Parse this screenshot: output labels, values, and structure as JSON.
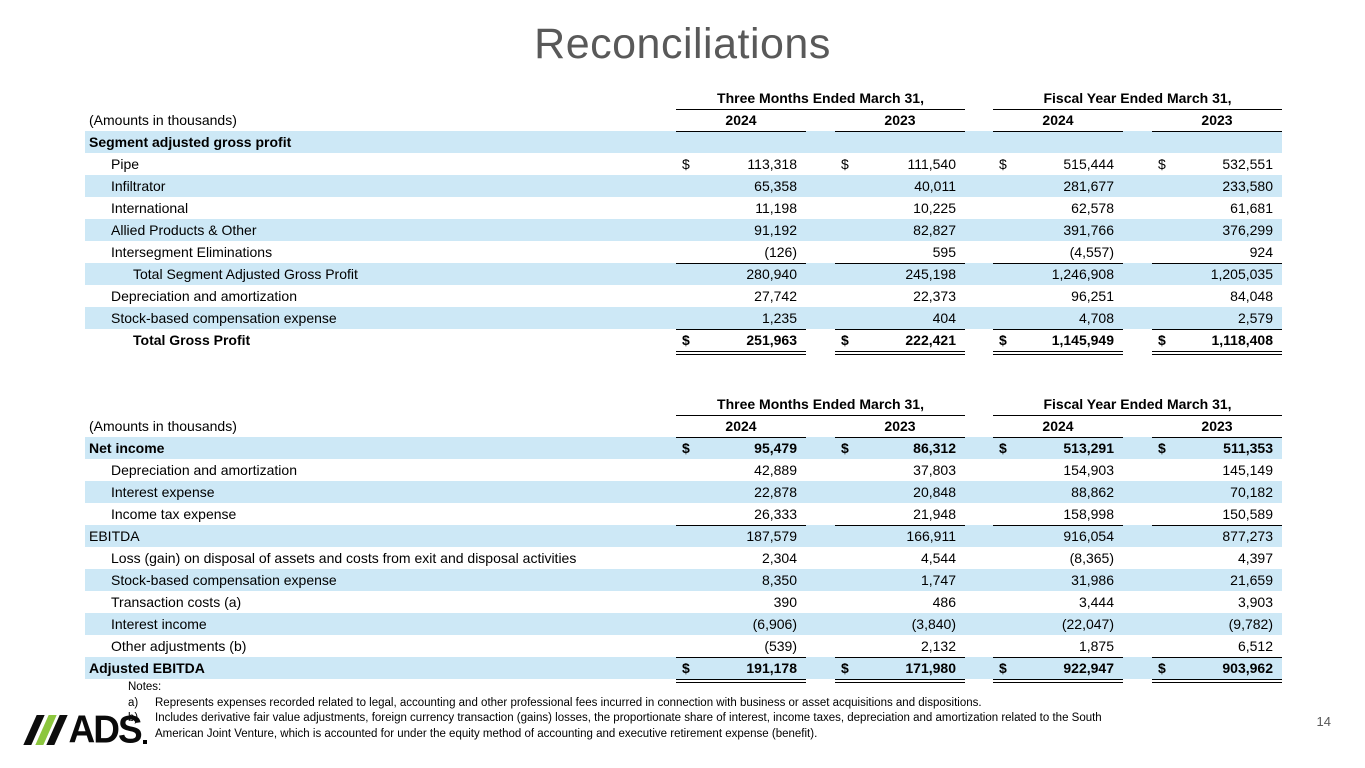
{
  "title": "Reconciliations",
  "page_number": "14",
  "logo": {
    "text": "ADS"
  },
  "colors": {
    "band": "#cde8f6",
    "logo_green": "#8cc63e",
    "title_gray": "#595959"
  },
  "tables": [
    {
      "name": "gross-profit-reconciliation",
      "group_headers": [
        "Three Months Ended March 31,",
        "Fiscal Year Ended March 31,"
      ],
      "amounts_label": "(Amounts in thousands)",
      "year_headers": [
        "2024",
        "2023",
        "2024",
        "2023"
      ],
      "rows": [
        {
          "label": "Segment adjusted gross profit",
          "indent": 0,
          "bold": true,
          "band": true,
          "dollar": false,
          "rule": "none",
          "values": [
            "",
            "",
            "",
            ""
          ]
        },
        {
          "label": "Pipe",
          "indent": 1,
          "bold": false,
          "band": false,
          "dollar": true,
          "rule": "none",
          "values": [
            "113,318",
            "111,540",
            "515,444",
            "532,551"
          ]
        },
        {
          "label": "Infiltrator",
          "indent": 1,
          "bold": false,
          "band": true,
          "dollar": false,
          "rule": "none",
          "values": [
            "65,358",
            "40,011",
            "281,677",
            "233,580"
          ]
        },
        {
          "label": "International",
          "indent": 1,
          "bold": false,
          "band": false,
          "dollar": false,
          "rule": "none",
          "values": [
            "11,198",
            "10,225",
            "62,578",
            "61,681"
          ]
        },
        {
          "label": "Allied Products & Other",
          "indent": 1,
          "bold": false,
          "band": true,
          "dollar": false,
          "rule": "none",
          "values": [
            "91,192",
            "82,827",
            "391,766",
            "376,299"
          ]
        },
        {
          "label": "Intersegment Eliminations",
          "indent": 1,
          "bold": false,
          "band": false,
          "dollar": false,
          "rule": "single",
          "values": [
            "(126)",
            "595",
            "(4,557)",
            "924"
          ]
        },
        {
          "label": "Total Segment Adjusted Gross Profit",
          "indent": 2,
          "bold": false,
          "band": true,
          "dollar": false,
          "rule": "none",
          "values": [
            "280,940",
            "245,198",
            "1,246,908",
            "1,205,035"
          ]
        },
        {
          "label": "Depreciation and amortization",
          "indent": 1,
          "bold": false,
          "band": false,
          "dollar": false,
          "rule": "none",
          "values": [
            "27,742",
            "22,373",
            "96,251",
            "84,048"
          ]
        },
        {
          "label": "Stock-based compensation expense",
          "indent": 1,
          "bold": false,
          "band": true,
          "dollar": false,
          "rule": "single",
          "values": [
            "1,235",
            "404",
            "4,708",
            "2,579"
          ]
        },
        {
          "label": "Total Gross Profit",
          "indent": 2,
          "bold": true,
          "band": false,
          "dollar": true,
          "rule": "double",
          "values": [
            "251,963",
            "222,421",
            "1,145,949",
            "1,118,408"
          ]
        }
      ]
    },
    {
      "name": "adjusted-ebitda-reconciliation",
      "group_headers": [
        "Three Months Ended March 31,",
        "Fiscal Year Ended March 31,"
      ],
      "amounts_label": "(Amounts in thousands)",
      "year_headers": [
        "2024",
        "2023",
        "2024",
        "2023"
      ],
      "rows": [
        {
          "label": "Net income",
          "indent": 0,
          "bold": true,
          "band": true,
          "dollar": true,
          "rule": "none",
          "values": [
            "95,479",
            "86,312",
            "513,291",
            "511,353"
          ]
        },
        {
          "label": "Depreciation and amortization",
          "indent": 1,
          "bold": false,
          "band": false,
          "dollar": false,
          "rule": "none",
          "values": [
            "42,889",
            "37,803",
            "154,903",
            "145,149"
          ]
        },
        {
          "label": "Interest expense",
          "indent": 1,
          "bold": false,
          "band": true,
          "dollar": false,
          "rule": "none",
          "values": [
            "22,878",
            "20,848",
            "88,862",
            "70,182"
          ]
        },
        {
          "label": "Income tax expense",
          "indent": 1,
          "bold": false,
          "band": false,
          "dollar": false,
          "rule": "single",
          "values": [
            "26,333",
            "21,948",
            "158,998",
            "150,589"
          ]
        },
        {
          "label": "EBITDA",
          "indent": 0,
          "bold": false,
          "band": true,
          "dollar": false,
          "rule": "none",
          "values": [
            "187,579",
            "166,911",
            "916,054",
            "877,273"
          ]
        },
        {
          "label": "Loss (gain) on disposal of assets and costs from exit and disposal activities",
          "indent": 1,
          "bold": false,
          "band": false,
          "dollar": false,
          "rule": "none",
          "values": [
            "2,304",
            "4,544",
            "(8,365)",
            "4,397"
          ]
        },
        {
          "label": "Stock-based compensation expense",
          "indent": 1,
          "bold": false,
          "band": true,
          "dollar": false,
          "rule": "none",
          "values": [
            "8,350",
            "1,747",
            "31,986",
            "21,659"
          ]
        },
        {
          "label": "Transaction costs (a)",
          "indent": 1,
          "bold": false,
          "band": false,
          "dollar": false,
          "rule": "none",
          "values": [
            "390",
            "486",
            "3,444",
            "3,903"
          ]
        },
        {
          "label": "Interest income",
          "indent": 1,
          "bold": false,
          "band": true,
          "dollar": false,
          "rule": "none",
          "values": [
            "(6,906)",
            "(3,840)",
            "(22,047)",
            "(9,782)"
          ]
        },
        {
          "label": "Other adjustments (b)",
          "indent": 1,
          "bold": false,
          "band": false,
          "dollar": false,
          "rule": "single",
          "values": [
            "(539)",
            "2,132",
            "1,875",
            "6,512"
          ]
        },
        {
          "label": "Adjusted EBITDA",
          "indent": 0,
          "bold": true,
          "band": true,
          "dollar": true,
          "rule": "double",
          "values": [
            "191,178",
            "171,980",
            "922,947",
            "903,962"
          ]
        }
      ]
    }
  ],
  "notes": {
    "heading": "Notes:",
    "items": [
      {
        "marker": "a)",
        "text": "Represents expenses recorded related to legal, accounting and other professional fees incurred in connection with business or asset acquisitions and dispositions."
      },
      {
        "marker": "b)",
        "text": "Includes derivative fair value adjustments, foreign currency transaction (gains) losses, the proportionate share of interest, income taxes, depreciation and amortization related to the South American Joint Venture, which is accounted for under the equity method of accounting and executive retirement expense (benefit)."
      }
    ]
  }
}
